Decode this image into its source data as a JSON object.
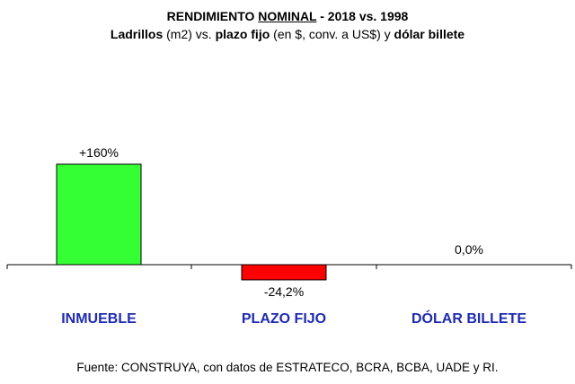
{
  "header": {
    "title_part1": "RENDIMIENTO ",
    "title_underlined": "NOMINAL",
    "title_part2": " - 2018 vs. 1998",
    "subtitle_bold1": "Ladrillos",
    "subtitle_plain1": " (m2) vs. ",
    "subtitle_bold2": "plazo fijo",
    "subtitle_plain2": " (en $, conv. a US$) y ",
    "subtitle_bold3": "dólar billete"
  },
  "chart_data": {
    "type": "bar",
    "categories": [
      "INMUEBLE",
      "PLAZO FIJO",
      "DÓLAR BILLETE"
    ],
    "values": [
      160,
      -24.2,
      0.0
    ],
    "data_labels": [
      "+160%",
      "-24,2%",
      "0,0%"
    ],
    "colors": [
      "#33ff33",
      "#ff0000",
      "#33ff33"
    ],
    "category_label_color": "#1f2bb0",
    "grid": false,
    "legend": "none"
  },
  "footer": {
    "source": "Fuente: CONSTRUYA, con datos de ESTRATECO, BCRA, BCBA, UADE y RI."
  }
}
